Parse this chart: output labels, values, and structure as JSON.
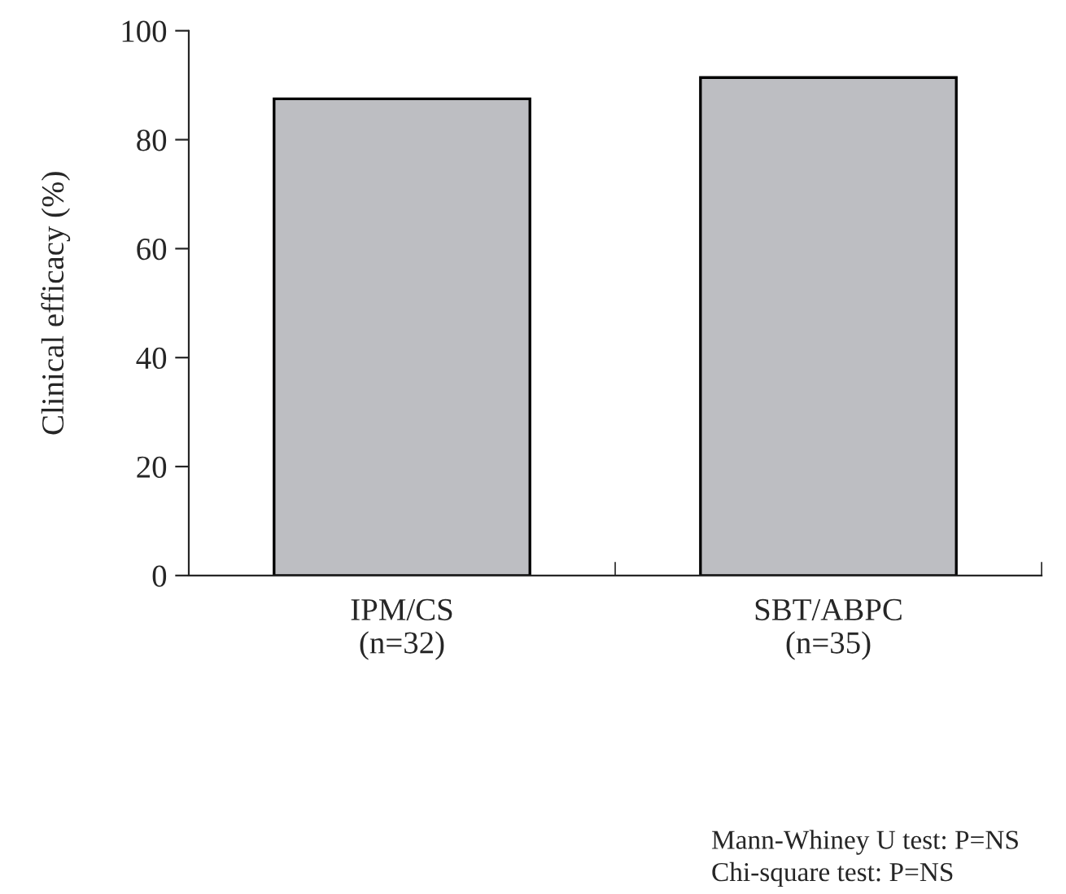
{
  "chart_data": {
    "type": "bar",
    "ylabel": "Clinical efficacy (%)",
    "categories": [
      "IPM/CS\n(n=32)",
      "SBT/ABPC\n(n=35)"
    ],
    "series": [
      {
        "color": "#bdbec2",
        "values": [
          87.5,
          91.4
        ]
      }
    ],
    "ylim": [
      0,
      100
    ],
    "yticks": [
      0,
      20,
      40,
      60,
      80,
      100
    ],
    "grid": false,
    "legend": false,
    "annotations": [
      "Mann-Whiney U test: P=NS",
      "Chi-square test: P=NS"
    ]
  }
}
